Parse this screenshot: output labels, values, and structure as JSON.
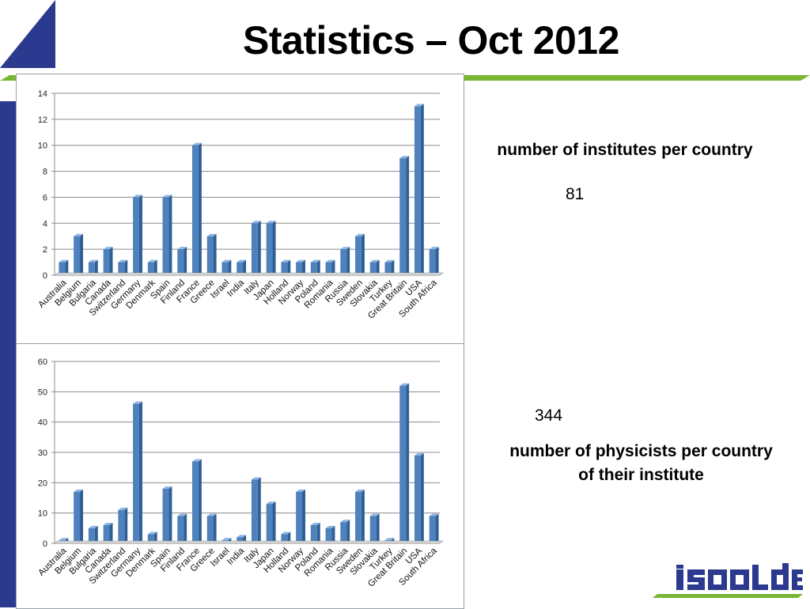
{
  "title": "Statistics – Oct 2012",
  "logo_text": "ISOLDE",
  "colors": {
    "brand_blue": "#2b3a8f",
    "accent_green": "#7ab534",
    "bar_blue": "#4f81bd"
  },
  "panels": {
    "institutes": {
      "caption": "number of institutes per country",
      "total": "81"
    },
    "physicists": {
      "caption_line1": "number of physicists per country",
      "caption_line2": "of their institute",
      "total": "344"
    }
  },
  "chart_data": [
    {
      "type": "bar",
      "categories": [
        "Australia",
        "Belgium",
        "Bulgaria",
        "Canada",
        "Switzerland",
        "Germany",
        "Denmark",
        "Spain",
        "Finland",
        "France",
        "Greece",
        "Israel",
        "India",
        "Italy",
        "Japan",
        "Holland",
        "Norway",
        "Poland",
        "Romania",
        "Russia",
        "Sweden",
        "Slovakia",
        "Turkey",
        "Great Britain",
        "USA",
        "South Africa"
      ],
      "values": [
        1,
        3,
        1,
        2,
        1,
        6,
        1,
        6,
        2,
        10,
        3,
        1,
        1,
        4,
        4,
        1,
        1,
        1,
        1,
        2,
        3,
        1,
        1,
        9,
        13,
        2
      ],
      "ylim": [
        0,
        14
      ],
      "yticks": [
        0,
        2,
        4,
        6,
        8,
        10,
        12,
        14
      ],
      "grid": true,
      "bar_color": "#4f81bd"
    },
    {
      "type": "bar",
      "categories": [
        "Australia",
        "Belgium",
        "Bulgaria",
        "Canada",
        "Switzerland",
        "Germany",
        "Denmark",
        "Spain",
        "Finland",
        "France",
        "Greece",
        "Israel",
        "India",
        "Italy",
        "Japan",
        "Holland",
        "Norway",
        "Poland",
        "Romania",
        "Russia",
        "Sweden",
        "Slovakia",
        "Turkey",
        "Great Britain",
        "USA",
        "South Africa"
      ],
      "values": [
        1,
        17,
        5,
        6,
        11,
        46,
        3,
        18,
        9,
        27,
        9,
        1,
        2,
        21,
        13,
        3,
        17,
        6,
        5,
        7,
        17,
        9,
        1,
        52,
        29,
        9
      ],
      "ylim": [
        0,
        60
      ],
      "yticks": [
        0,
        10,
        20,
        30,
        40,
        50,
        60
      ],
      "grid": true,
      "bar_color": "#4f81bd"
    }
  ]
}
